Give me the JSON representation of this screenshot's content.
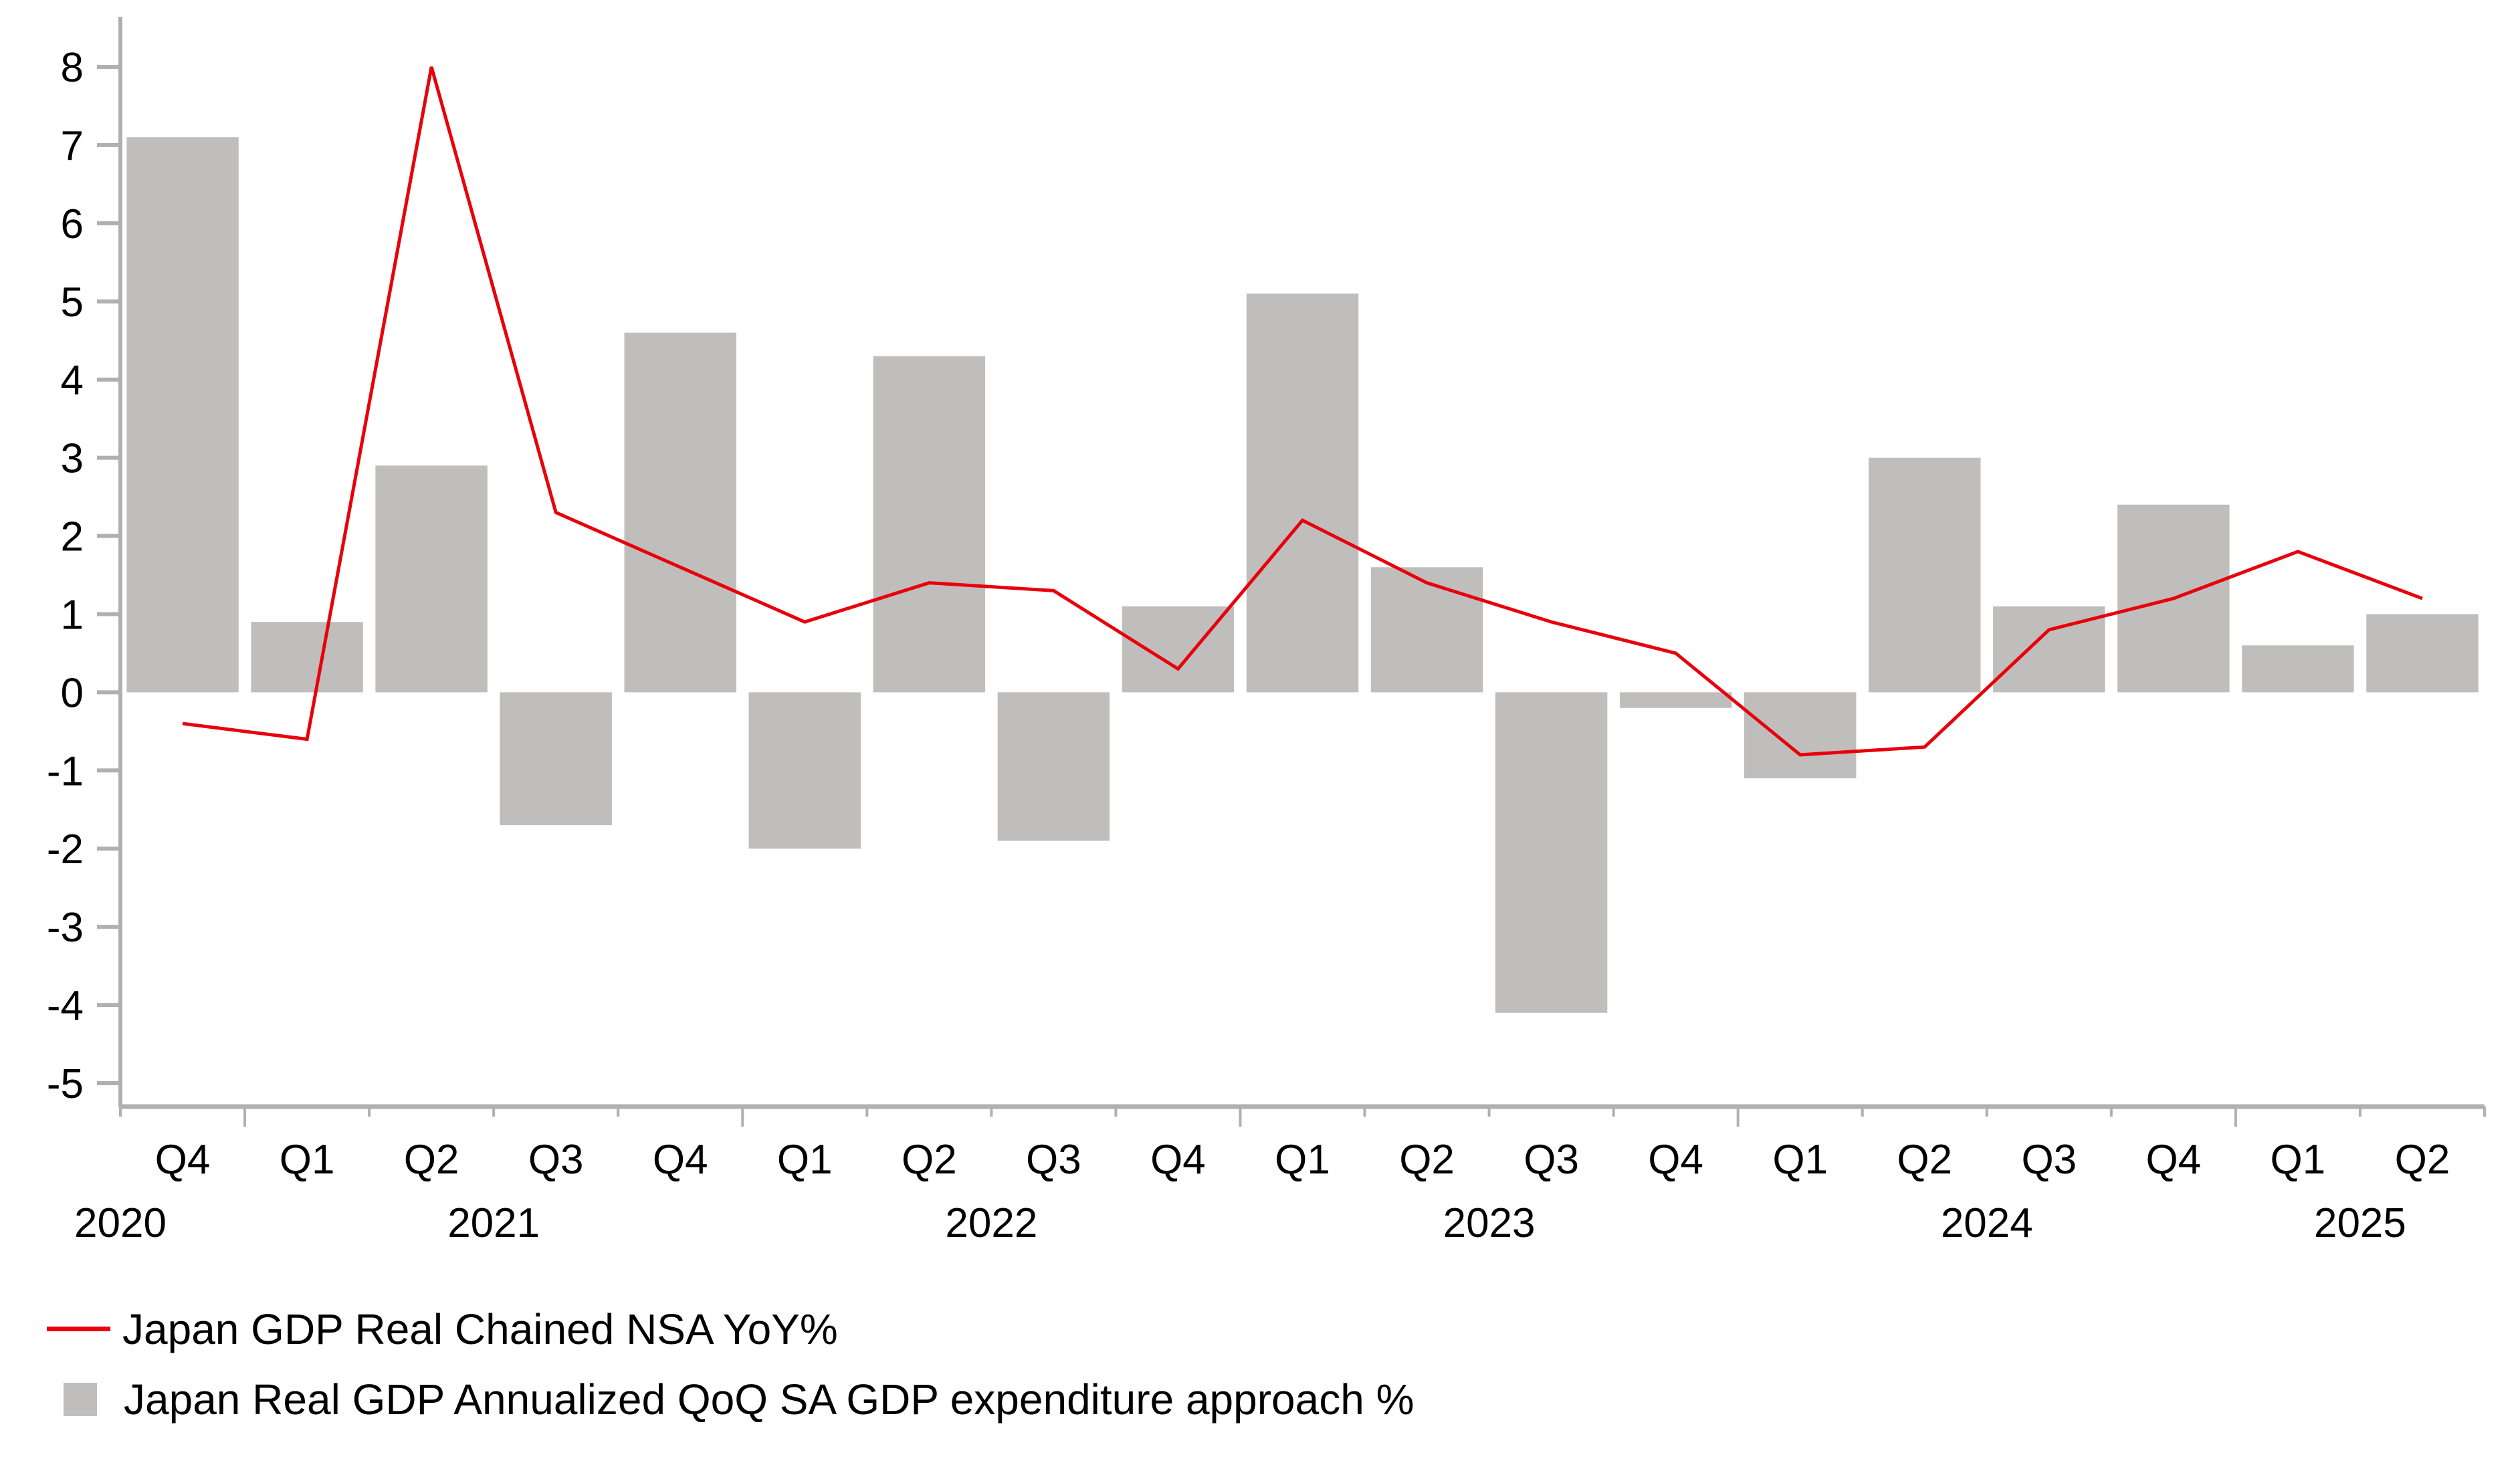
{
  "chart_data": {
    "type": "bar",
    "title": "",
    "xlabel": "",
    "ylabel": "",
    "ylim": [
      -5,
      8
    ],
    "yticks": [
      8,
      7,
      6,
      5,
      4,
      3,
      2,
      1,
      0,
      -1,
      -2,
      -3,
      -4,
      -5
    ],
    "grid": false,
    "legend_position": "bottom-left",
    "categories": [
      "Q4",
      "Q1",
      "Q2",
      "Q3",
      "Q4",
      "Q1",
      "Q2",
      "Q3",
      "Q4",
      "Q1",
      "Q2",
      "Q3",
      "Q4",
      "Q1",
      "Q2",
      "Q3",
      "Q4",
      "Q1",
      "Q2"
    ],
    "years": [
      {
        "label": "2020",
        "start": 0,
        "count": 1
      },
      {
        "label": "2021",
        "start": 1,
        "count": 4
      },
      {
        "label": "2022",
        "start": 5,
        "count": 4
      },
      {
        "label": "2023",
        "start": 9,
        "count": 4
      },
      {
        "label": "2024",
        "start": 13,
        "count": 4
      },
      {
        "label": "2025",
        "start": 17,
        "count": 2
      }
    ],
    "series": [
      {
        "name": "Japan Real GDP Annualized QoQ SA GDP expenditure approach %",
        "type": "bar",
        "color": "#bfbebd",
        "values": [
          7.1,
          0.9,
          2.9,
          -1.7,
          4.6,
          -2.0,
          4.3,
          -1.9,
          1.1,
          5.1,
          1.6,
          -4.1,
          -0.2,
          -1.1,
          3.0,
          1.1,
          2.4,
          0.6,
          1.0
        ]
      },
      {
        "name": "Japan GDP Real Chained NSA YoY%",
        "type": "line",
        "color": "#e8000b",
        "values": [
          -0.4,
          -0.6,
          8.0,
          2.3,
          1.6,
          0.9,
          1.4,
          1.3,
          0.3,
          2.2,
          1.4,
          0.9,
          0.5,
          -0.8,
          -0.7,
          0.8,
          1.2,
          1.8,
          1.2
        ]
      }
    ]
  },
  "legend": {
    "items": [
      {
        "label": "Japan GDP Real Chained NSA YoY%",
        "kind": "line"
      },
      {
        "label": "Japan Real GDP Annualized QoQ SA GDP expenditure approach %",
        "kind": "bar"
      }
    ]
  }
}
